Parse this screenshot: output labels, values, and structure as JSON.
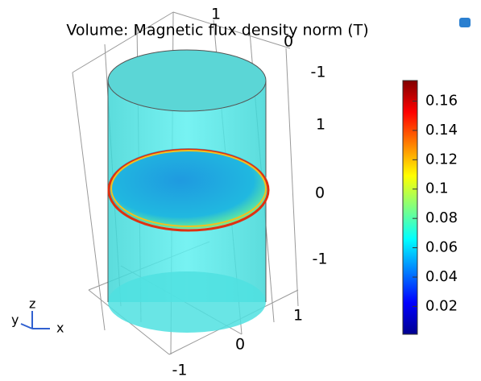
{
  "chart_data": {
    "type": "volume",
    "title": "Volume: Magnetic flux density norm (T)",
    "axis_tick_labels": [
      1,
      0,
      -1,
      1,
      0,
      -1,
      1,
      0,
      -1
    ],
    "triad": {
      "x": "x",
      "y": "y",
      "z": "z"
    },
    "colorbar": {
      "lim": [
        0.001,
        0.174
      ],
      "ticks": [
        0.02,
        0.04,
        0.06,
        0.08,
        0.1,
        0.12,
        0.14,
        0.16
      ],
      "colormap": [
        "#00008f",
        "#0000ff",
        "#0080ff",
        "#00ffff",
        "#80ff80",
        "#ffff00",
        "#ff8000",
        "#ff0000",
        "#800000"
      ]
    }
  }
}
